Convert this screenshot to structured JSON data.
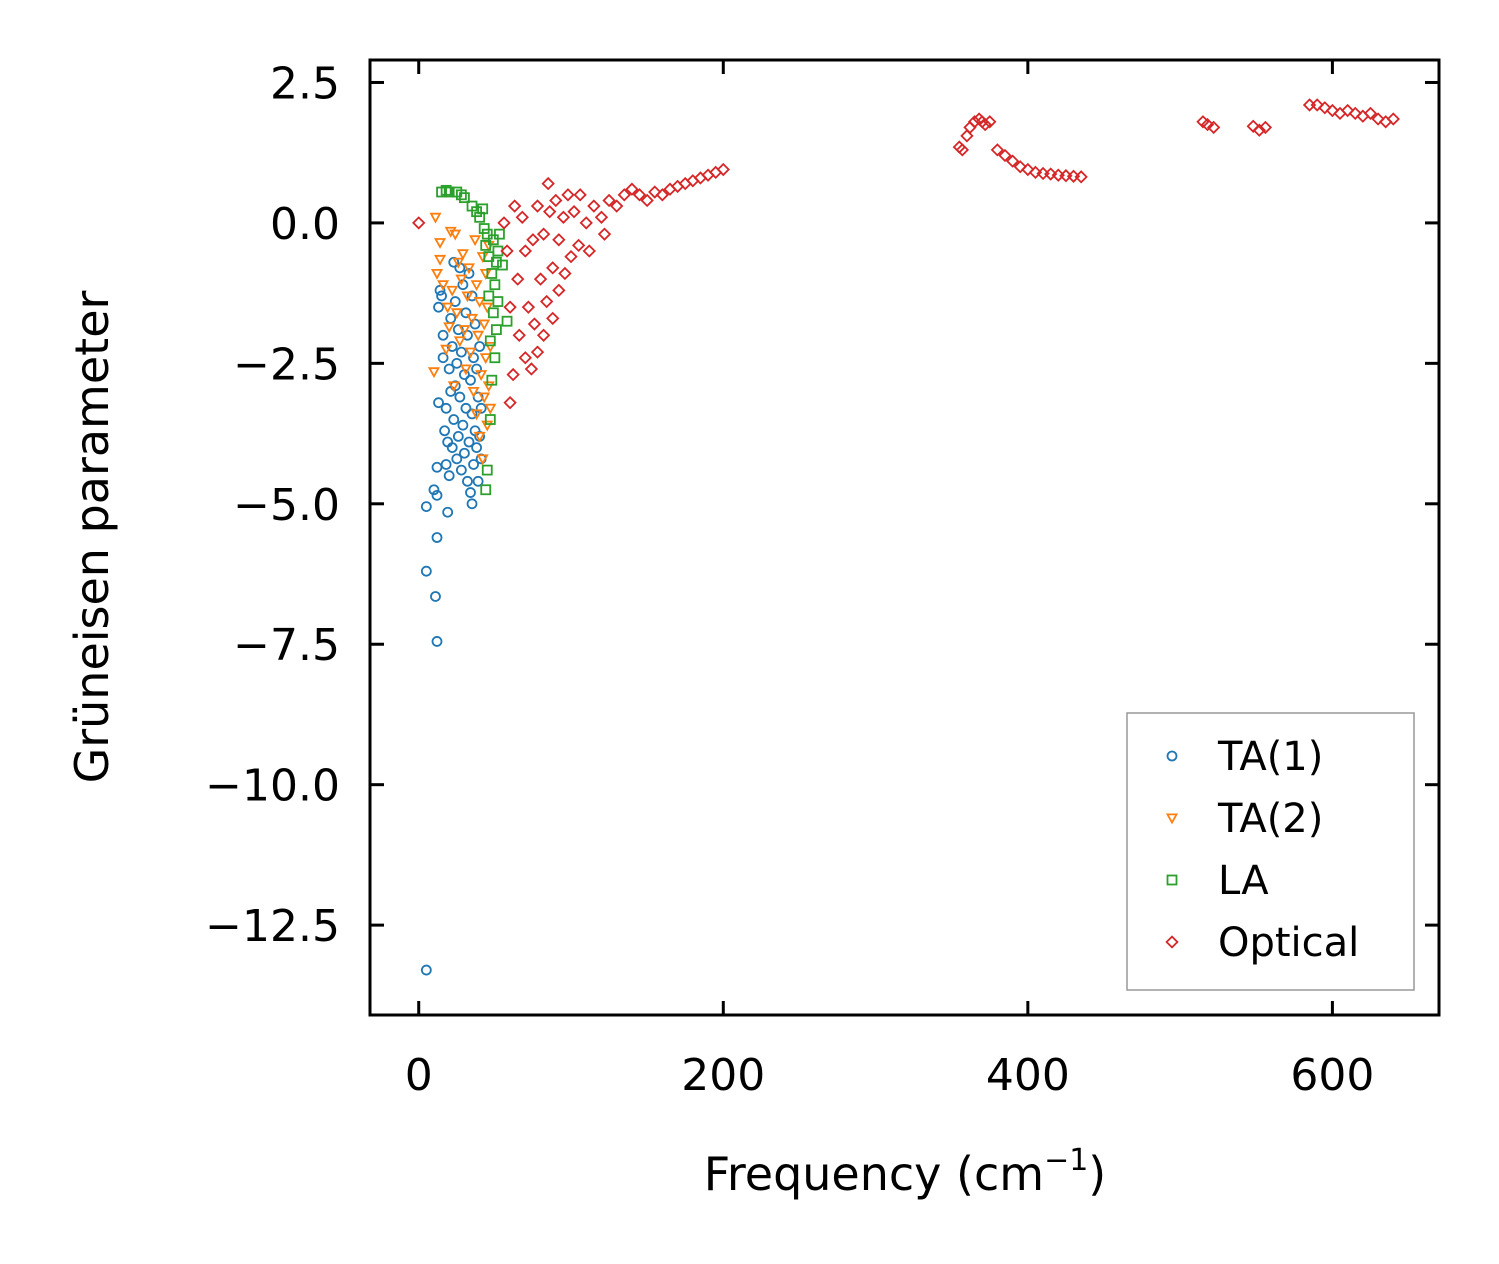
{
  "chart_data": {
    "type": "scatter",
    "title": "",
    "xlabel": "Frequency (cm",
    "xlabel_superscript": "−1",
    "xlabel_suffix": ")",
    "ylabel": "Grüneisen parameter",
    "xlim": [
      -32,
      670
    ],
    "ylim": [
      -14.1,
      2.9
    ],
    "xticks": [
      0,
      200,
      400,
      600
    ],
    "xtick_labels": [
      "0",
      "200",
      "400",
      "600"
    ],
    "yticks": [
      2.5,
      0.0,
      -2.5,
      -5.0,
      -7.5,
      -10.0,
      -12.5
    ],
    "ytick_labels": [
      "2.5",
      "0.0",
      "−2.5",
      "−5.0",
      "−7.5",
      "−10.0",
      "−12.5"
    ],
    "grid": false,
    "legend_position": "lower-right",
    "series": [
      {
        "name": "TA(1)",
        "marker": "circle",
        "color": "#1f77b4",
        "points": [
          [
            5,
            -13.3
          ],
          [
            5,
            -5.05
          ],
          [
            5,
            -6.2
          ],
          [
            10,
            -4.75
          ],
          [
            11,
            -6.65
          ],
          [
            12,
            -5.6
          ],
          [
            12,
            -7.45
          ],
          [
            12,
            -4.85
          ],
          [
            12,
            -4.35
          ],
          [
            13,
            -3.2
          ],
          [
            13,
            -1.5
          ],
          [
            14,
            -1.2
          ],
          [
            15,
            -1.3
          ],
          [
            16,
            -2.0
          ],
          [
            16,
            -2.4
          ],
          [
            17,
            -3.7
          ],
          [
            18,
            -3.3
          ],
          [
            18,
            -4.3
          ],
          [
            19,
            -5.15
          ],
          [
            19,
            -3.9
          ],
          [
            20,
            -4.5
          ],
          [
            20,
            -2.6
          ],
          [
            21,
            -3.0
          ],
          [
            21,
            -1.7
          ],
          [
            22,
            -4.0
          ],
          [
            22,
            -2.2
          ],
          [
            23,
            -0.7
          ],
          [
            23,
            -3.5
          ],
          [
            24,
            -2.9
          ],
          [
            24,
            -1.4
          ],
          [
            25,
            -4.2
          ],
          [
            25,
            -2.5
          ],
          [
            26,
            -3.8
          ],
          [
            26,
            -1.9
          ],
          [
            27,
            -0.8
          ],
          [
            27,
            -3.1
          ],
          [
            28,
            -4.4
          ],
          [
            28,
            -2.3
          ],
          [
            29,
            -1.1
          ],
          [
            29,
            -3.6
          ],
          [
            30,
            -2.7
          ],
          [
            30,
            -4.1
          ],
          [
            31,
            -1.6
          ],
          [
            31,
            -3.3
          ],
          [
            32,
            -4.6
          ],
          [
            32,
            -2.0
          ],
          [
            33,
            -0.9
          ],
          [
            33,
            -3.9
          ],
          [
            34,
            -2.8
          ],
          [
            34,
            -4.8
          ],
          [
            35,
            -1.3
          ],
          [
            35,
            -3.4
          ],
          [
            35,
            -5.0
          ],
          [
            36,
            -2.4
          ],
          [
            36,
            -4.3
          ],
          [
            37,
            -1.8
          ],
          [
            37,
            -3.7
          ],
          [
            38,
            -2.6
          ],
          [
            38,
            -4.0
          ],
          [
            39,
            -3.1
          ],
          [
            39,
            -4.6
          ],
          [
            40,
            -2.2
          ],
          [
            40,
            -3.8
          ],
          [
            41,
            -3.3
          ],
          [
            41,
            -4.2
          ]
        ]
      },
      {
        "name": "TA(2)",
        "marker": "triangle-down",
        "color": "#ff7f0e",
        "points": [
          [
            10,
            -2.65
          ],
          [
            11,
            0.1
          ],
          [
            12,
            -0.9
          ],
          [
            14,
            -0.65
          ],
          [
            14,
            -0.35
          ],
          [
            16,
            -1.1
          ],
          [
            18,
            -2.25
          ],
          [
            19,
            -1.5
          ],
          [
            20,
            -1.85
          ],
          [
            21,
            -0.15
          ],
          [
            22,
            -1.2
          ],
          [
            23,
            -2.9
          ],
          [
            24,
            -0.2
          ],
          [
            25,
            -1.6
          ],
          [
            26,
            -0.7
          ],
          [
            27,
            -2.1
          ],
          [
            28,
            -1.0
          ],
          [
            29,
            -0.55
          ],
          [
            30,
            -1.9
          ],
          [
            31,
            -2.6
          ],
          [
            32,
            -1.3
          ],
          [
            33,
            -0.8
          ],
          [
            34,
            -2.3
          ],
          [
            35,
            -1.7
          ],
          [
            36,
            -3.0
          ],
          [
            37,
            -0.3
          ],
          [
            38,
            -3.4
          ],
          [
            38,
            -1.1
          ],
          [
            39,
            -2.0
          ],
          [
            40,
            -3.8
          ],
          [
            40,
            -1.4
          ],
          [
            41,
            -2.7
          ],
          [
            42,
            -0.6
          ],
          [
            42,
            -4.2
          ],
          [
            43,
            -1.8
          ],
          [
            43,
            -3.1
          ],
          [
            44,
            -2.4
          ],
          [
            44,
            -0.9
          ],
          [
            45,
            -3.6
          ],
          [
            45,
            -1.5
          ],
          [
            46,
            -2.9
          ],
          [
            46,
            -0.4
          ],
          [
            47,
            -2.2
          ],
          [
            47,
            -3.3
          ]
        ]
      },
      {
        "name": "LA",
        "marker": "square",
        "color": "#2ca02c",
        "points": [
          [
            15,
            0.55
          ],
          [
            18,
            0.58
          ],
          [
            20,
            0.55
          ],
          [
            25,
            0.55
          ],
          [
            28,
            0.5
          ],
          [
            30,
            0.45
          ],
          [
            35,
            0.3
          ],
          [
            38,
            0.2
          ],
          [
            40,
            0.1
          ],
          [
            42,
            0.25
          ],
          [
            43,
            -0.1
          ],
          [
            44,
            -0.4
          ],
          [
            44,
            -4.75
          ],
          [
            45,
            -0.2
          ],
          [
            45,
            -4.4
          ],
          [
            46,
            -1.3
          ],
          [
            46,
            -0.6
          ],
          [
            47,
            -3.5
          ],
          [
            47,
            -2.1
          ],
          [
            48,
            -0.9
          ],
          [
            48,
            -2.8
          ],
          [
            49,
            -1.6
          ],
          [
            49,
            -0.3
          ],
          [
            50,
            -2.4
          ],
          [
            50,
            -1.1
          ],
          [
            51,
            -0.7
          ],
          [
            51,
            -1.9
          ],
          [
            52,
            -0.5
          ],
          [
            52,
            -1.4
          ],
          [
            53,
            -0.2
          ],
          [
            55,
            -0.75
          ],
          [
            58,
            -1.75
          ]
        ]
      },
      {
        "name": "Optical",
        "marker": "diamond",
        "color": "#d62728",
        "points": [
          [
            0,
            0.0
          ],
          [
            56,
            0.0
          ],
          [
            58,
            -0.5
          ],
          [
            60,
            -1.5
          ],
          [
            60,
            -3.2
          ],
          [
            62,
            -2.7
          ],
          [
            63,
            0.3
          ],
          [
            65,
            -1.0
          ],
          [
            66,
            -2.0
          ],
          [
            68,
            0.1
          ],
          [
            70,
            -0.5
          ],
          [
            70,
            -2.4
          ],
          [
            72,
            -1.5
          ],
          [
            74,
            -2.6
          ],
          [
            75,
            -0.3
          ],
          [
            76,
            -1.8
          ],
          [
            78,
            0.3
          ],
          [
            78,
            -2.3
          ],
          [
            80,
            -1.0
          ],
          [
            82,
            -0.2
          ],
          [
            82,
            -2.0
          ],
          [
            84,
            -1.4
          ],
          [
            85,
            0.7
          ],
          [
            86,
            0.2
          ],
          [
            88,
            -0.8
          ],
          [
            88,
            -1.7
          ],
          [
            90,
            0.4
          ],
          [
            92,
            -0.3
          ],
          [
            92,
            -1.2
          ],
          [
            95,
            0.1
          ],
          [
            96,
            -0.9
          ],
          [
            98,
            0.5
          ],
          [
            100,
            -0.6
          ],
          [
            102,
            0.2
          ],
          [
            105,
            -0.4
          ],
          [
            106,
            0.5
          ],
          [
            110,
            0.0
          ],
          [
            112,
            -0.5
          ],
          [
            115,
            0.3
          ],
          [
            120,
            0.1
          ],
          [
            122,
            -0.2
          ],
          [
            125,
            0.4
          ],
          [
            130,
            0.3
          ],
          [
            135,
            0.5
          ],
          [
            140,
            0.6
          ],
          [
            145,
            0.5
          ],
          [
            150,
            0.4
          ],
          [
            155,
            0.55
          ],
          [
            160,
            0.5
          ],
          [
            165,
            0.6
          ],
          [
            170,
            0.65
          ],
          [
            175,
            0.7
          ],
          [
            180,
            0.75
          ],
          [
            185,
            0.8
          ],
          [
            190,
            0.85
          ],
          [
            195,
            0.9
          ],
          [
            200,
            0.95
          ],
          [
            355,
            1.35
          ],
          [
            357,
            1.3
          ],
          [
            360,
            1.55
          ],
          [
            362,
            1.7
          ],
          [
            365,
            1.8
          ],
          [
            368,
            1.85
          ],
          [
            370,
            1.8
          ],
          [
            372,
            1.75
          ],
          [
            375,
            1.8
          ],
          [
            380,
            1.3
          ],
          [
            385,
            1.2
          ],
          [
            390,
            1.1
          ],
          [
            395,
            1.0
          ],
          [
            400,
            0.95
          ],
          [
            405,
            0.9
          ],
          [
            410,
            0.88
          ],
          [
            415,
            0.87
          ],
          [
            420,
            0.85
          ],
          [
            425,
            0.84
          ],
          [
            430,
            0.83
          ],
          [
            435,
            0.82
          ],
          [
            515,
            1.8
          ],
          [
            518,
            1.75
          ],
          [
            522,
            1.7
          ],
          [
            548,
            1.72
          ],
          [
            552,
            1.65
          ],
          [
            556,
            1.7
          ],
          [
            585,
            2.1
          ],
          [
            590,
            2.1
          ],
          [
            595,
            2.05
          ],
          [
            600,
            2.0
          ],
          [
            605,
            1.95
          ],
          [
            610,
            2.0
          ],
          [
            615,
            1.95
          ],
          [
            620,
            1.9
          ],
          [
            625,
            1.95
          ],
          [
            630,
            1.85
          ],
          [
            635,
            1.8
          ],
          [
            640,
            1.85
          ]
        ]
      }
    ]
  }
}
